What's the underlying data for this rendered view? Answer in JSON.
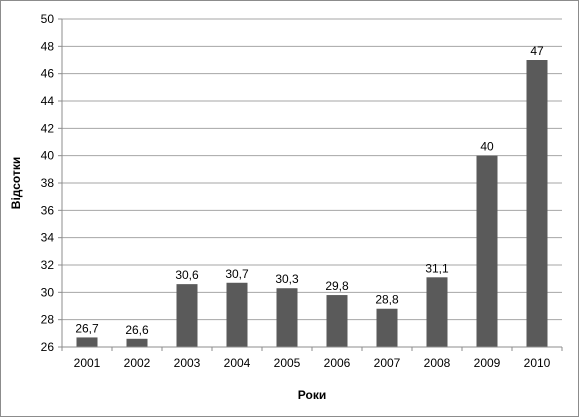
{
  "chart_data": {
    "type": "bar",
    "categories": [
      "2001",
      "2002",
      "2003",
      "2004",
      "2005",
      "2006",
      "2007",
      "2008",
      "2009",
      "2010"
    ],
    "values": [
      26.7,
      26.6,
      30.6,
      30.7,
      30.3,
      29.8,
      28.8,
      31.1,
      40,
      47
    ],
    "data_labels": [
      "26,7",
      "26,6",
      "30,6",
      "30,7",
      "30,3",
      "29,8",
      "28,8",
      "31,1",
      "40",
      "47"
    ],
    "xlabel": "Роки",
    "ylabel": "Відсотки",
    "ylim": [
      26,
      50
    ],
    "yticks": [
      26,
      28,
      30,
      32,
      34,
      36,
      38,
      40,
      42,
      44,
      46,
      48,
      50
    ],
    "grid": true,
    "legend": "none",
    "bar_color": "#5a5a5a",
    "grid_color": "#a6a6a6"
  }
}
